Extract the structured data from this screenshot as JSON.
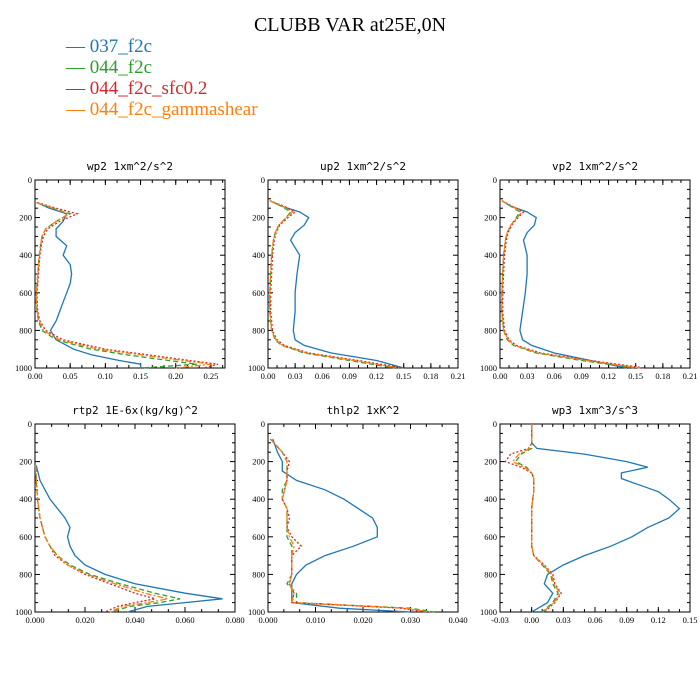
{
  "title": "CLUBB VAR at25E,0N",
  "legend": [
    {
      "label": "037_f2c",
      "color": "#1f77b4",
      "dash": "solid"
    },
    {
      "label": "044_f2c",
      "color": "#2ca02c",
      "dash": "dashed"
    },
    {
      "label": "044_f2c_sfc0.2",
      "color": "#d62728",
      "dash": "dotted"
    },
    {
      "label": "044_f2c_gammashear",
      "color": "#ff7f0e",
      "dash": "dashdot"
    }
  ],
  "chart_data": [
    {
      "type": "line",
      "title": "wp2  1xm^2/s^2",
      "xlim": [
        0,
        0.27
      ],
      "ylim": [
        1000,
        0
      ],
      "xticks": [
        "0.00",
        "0.05",
        "0.10",
        "0.15",
        "0.20",
        "0.25"
      ],
      "xtick_values": [
        0,
        0.05,
        0.1,
        0.15,
        0.2,
        0.25
      ],
      "yticks": [
        "0",
        "200",
        "400",
        "600",
        "800",
        "1000"
      ],
      "y": [
        120,
        150,
        180,
        220,
        260,
        300,
        350,
        400,
        450,
        500,
        550,
        600,
        650,
        700,
        750,
        800,
        850,
        900,
        930,
        960,
        980,
        1000
      ],
      "series": [
        {
          "name": "037_f2c",
          "x": [
            0.003,
            0.02,
            0.045,
            0.04,
            0.03,
            0.03,
            0.045,
            0.04,
            0.05,
            0.052,
            0.05,
            0.045,
            0.04,
            0.035,
            0.03,
            0.022,
            0.03,
            0.055,
            0.08,
            0.12,
            0.15,
            0.15
          ]
        },
        {
          "name": "044_f2c",
          "x": [
            0.002,
            0.025,
            0.05,
            0.03,
            0.015,
            0.01,
            0.008,
            0.006,
            0.005,
            0.004,
            0.003,
            0.002,
            0.002,
            0.003,
            0.005,
            0.01,
            0.03,
            0.08,
            0.13,
            0.19,
            0.23,
            0.15
          ]
        },
        {
          "name": "044_f2c_sfc0.2",
          "x": [
            0.003,
            0.03,
            0.06,
            0.035,
            0.018,
            0.012,
            0.009,
            0.007,
            0.006,
            0.005,
            0.004,
            0.003,
            0.003,
            0.004,
            0.007,
            0.015,
            0.04,
            0.1,
            0.16,
            0.22,
            0.26,
            0.24
          ]
        },
        {
          "name": "044_f2c_gammashear",
          "x": [
            0.002,
            0.025,
            0.048,
            0.03,
            0.015,
            0.01,
            0.008,
            0.006,
            0.005,
            0.004,
            0.003,
            0.002,
            0.002,
            0.003,
            0.006,
            0.012,
            0.035,
            0.09,
            0.15,
            0.21,
            0.25,
            0.2
          ]
        }
      ]
    },
    {
      "type": "line",
      "title": "up2  1xm^2/s^2",
      "xlim": [
        0,
        0.21
      ],
      "ylim": [
        1000,
        0
      ],
      "xticks": [
        "0.00",
        "0.03",
        "0.06",
        "0.09",
        "0.12",
        "0.15",
        "0.18",
        "0.21"
      ],
      "xtick_values": [
        0,
        0.03,
        0.06,
        0.09,
        0.12,
        0.15,
        0.18,
        0.21
      ],
      "yticks": [
        "0",
        "200",
        "400",
        "600",
        "800",
        "1000"
      ],
      "y": [
        110,
        140,
        170,
        200,
        240,
        280,
        320,
        360,
        400,
        500,
        600,
        700,
        800,
        850,
        880,
        920,
        960,
        1000
      ],
      "series": [
        {
          "name": "037_f2c",
          "x": [
            0.002,
            0.015,
            0.035,
            0.045,
            0.04,
            0.03,
            0.025,
            0.03,
            0.035,
            0.032,
            0.03,
            0.03,
            0.028,
            0.03,
            0.04,
            0.07,
            0.12,
            0.15
          ]
        },
        {
          "name": "044_f2c",
          "x": [
            0.002,
            0.015,
            0.025,
            0.02,
            0.012,
            0.008,
            0.006,
            0.005,
            0.004,
            0.003,
            0.002,
            0.002,
            0.004,
            0.008,
            0.015,
            0.04,
            0.09,
            0.14
          ]
        },
        {
          "name": "044_f2c_sfc0.2",
          "x": [
            0.002,
            0.018,
            0.03,
            0.022,
            0.013,
            0.009,
            0.007,
            0.006,
            0.005,
            0.004,
            0.003,
            0.003,
            0.005,
            0.01,
            0.018,
            0.045,
            0.1,
            0.15
          ]
        },
        {
          "name": "044_f2c_gammashear",
          "x": [
            0.002,
            0.016,
            0.027,
            0.02,
            0.012,
            0.008,
            0.006,
            0.005,
            0.004,
            0.003,
            0.002,
            0.002,
            0.004,
            0.009,
            0.016,
            0.042,
            0.095,
            0.145
          ]
        }
      ]
    },
    {
      "type": "line",
      "title": "vp2  1xm^2/s^2",
      "xlim": [
        0,
        0.21
      ],
      "ylim": [
        1000,
        0
      ],
      "xticks": [
        "0.00",
        "0.03",
        "0.06",
        "0.09",
        "0.12",
        "0.15",
        "0.18",
        "0.21"
      ],
      "xtick_values": [
        0,
        0.03,
        0.06,
        0.09,
        0.12,
        0.15,
        0.18,
        0.21
      ],
      "yticks": [
        "0",
        "200",
        "400",
        "600",
        "800",
        "1000"
      ],
      "y": [
        110,
        140,
        170,
        200,
        240,
        280,
        320,
        360,
        400,
        500,
        600,
        700,
        800,
        850,
        880,
        920,
        960,
        1000
      ],
      "series": [
        {
          "name": "037_f2c",
          "x": [
            0.002,
            0.012,
            0.03,
            0.04,
            0.038,
            0.03,
            0.026,
            0.028,
            0.03,
            0.03,
            0.028,
            0.025,
            0.022,
            0.025,
            0.035,
            0.06,
            0.1,
            0.14
          ]
        },
        {
          "name": "044_f2c",
          "x": [
            0.002,
            0.012,
            0.022,
            0.018,
            0.012,
            0.008,
            0.006,
            0.005,
            0.004,
            0.003,
            0.002,
            0.002,
            0.004,
            0.008,
            0.015,
            0.04,
            0.09,
            0.15
          ]
        },
        {
          "name": "044_f2c_sfc0.2",
          "x": [
            0.002,
            0.014,
            0.026,
            0.02,
            0.013,
            0.009,
            0.007,
            0.006,
            0.005,
            0.004,
            0.003,
            0.003,
            0.005,
            0.01,
            0.018,
            0.045,
            0.1,
            0.16
          ]
        },
        {
          "name": "044_f2c_gammashear",
          "x": [
            0.002,
            0.013,
            0.024,
            0.019,
            0.012,
            0.008,
            0.006,
            0.005,
            0.004,
            0.003,
            0.002,
            0.002,
            0.004,
            0.009,
            0.016,
            0.042,
            0.095,
            0.155
          ]
        }
      ]
    },
    {
      "type": "line",
      "title": "rtp2  1E-6x(kg/kg)^2",
      "xlim": [
        0,
        0.08
      ],
      "ylim": [
        1000,
        0
      ],
      "xticks": [
        "0.000",
        "0.020",
        "0.040",
        "0.060",
        "0.080"
      ],
      "xtick_values": [
        0,
        0.02,
        0.04,
        0.06,
        0.08
      ],
      "yticks": [
        "0",
        "200",
        "400",
        "600",
        "800",
        "1000"
      ],
      "y": [
        220,
        300,
        400,
        500,
        550,
        600,
        650,
        700,
        750,
        800,
        850,
        900,
        930,
        950,
        970,
        1000
      ],
      "series": [
        {
          "name": "037_f2c",
          "x": [
            0.0005,
            0.002,
            0.006,
            0.012,
            0.014,
            0.013,
            0.014,
            0.016,
            0.02,
            0.028,
            0.04,
            0.06,
            0.075,
            0.06,
            0.045,
            0.037
          ]
        },
        {
          "name": "044_f2c",
          "x": [
            0.0002,
            0.0005,
            0.001,
            0.002,
            0.003,
            0.004,
            0.006,
            0.009,
            0.014,
            0.022,
            0.034,
            0.048,
            0.058,
            0.05,
            0.038,
            0.03
          ]
        },
        {
          "name": "044_f2c_sfc0.2",
          "x": [
            0.0002,
            0.0005,
            0.001,
            0.002,
            0.003,
            0.004,
            0.006,
            0.008,
            0.013,
            0.02,
            0.03,
            0.04,
            0.048,
            0.04,
            0.033,
            0.028
          ]
        },
        {
          "name": "044_f2c_gammashear",
          "x": [
            0.0002,
            0.0005,
            0.001,
            0.002,
            0.003,
            0.004,
            0.006,
            0.009,
            0.013,
            0.021,
            0.032,
            0.044,
            0.053,
            0.045,
            0.035,
            0.03
          ]
        }
      ]
    },
    {
      "type": "line",
      "title": "thlp2  1xK^2",
      "xlim": [
        0,
        0.04
      ],
      "ylim": [
        1000,
        0
      ],
      "xticks": [
        "0.000",
        "0.010",
        "0.020",
        "0.030",
        "0.040"
      ],
      "xtick_values": [
        0,
        0.01,
        0.02,
        0.03,
        0.04
      ],
      "yticks": [
        "0",
        "200",
        "400",
        "600",
        "800",
        "1000"
      ],
      "y": [
        80,
        150,
        200,
        250,
        300,
        350,
        400,
        450,
        500,
        550,
        600,
        650,
        700,
        750,
        800,
        850,
        900,
        950,
        980,
        1000
      ],
      "series": [
        {
          "name": "037_f2c",
          "x": [
            0.001,
            0.002,
            0.003,
            0.003,
            0.006,
            0.012,
            0.016,
            0.019,
            0.022,
            0.023,
            0.023,
            0.018,
            0.012,
            0.008,
            0.006,
            0.005,
            0.005,
            0.005,
            0.015,
            0.03
          ]
        },
        {
          "name": "044_f2c",
          "x": [
            0.0005,
            0.003,
            0.004,
            0.004,
            0.004,
            0.003,
            0.003,
            0.004,
            0.004,
            0.004,
            0.004,
            0.005,
            0.005,
            0.005,
            0.005,
            0.004,
            0.006,
            0.006,
            0.03,
            0.035
          ]
        },
        {
          "name": "044_f2c_sfc0.2",
          "x": [
            0.0005,
            0.003,
            0.0045,
            0.004,
            0.004,
            0.0035,
            0.003,
            0.004,
            0.0045,
            0.004,
            0.005,
            0.007,
            0.005,
            0.005,
            0.005,
            0.0045,
            0.0055,
            0.005,
            0.028,
            0.033
          ]
        },
        {
          "name": "044_f2c_gammashear",
          "x": [
            0.0005,
            0.003,
            0.004,
            0.004,
            0.004,
            0.0035,
            0.003,
            0.004,
            0.004,
            0.004,
            0.0045,
            0.0055,
            0.005,
            0.005,
            0.005,
            0.0045,
            0.0055,
            0.005,
            0.029,
            0.034
          ]
        }
      ]
    },
    {
      "type": "line",
      "title": "wp3  1xm^3/s^3",
      "xlim": [
        -0.03,
        0.15
      ],
      "ylim": [
        1000,
        0
      ],
      "xticks": [
        "-0.03",
        "0.00",
        "0.03",
        "0.06",
        "0.09",
        "0.12",
        "0.15"
      ],
      "xtick_values": [
        -0.03,
        0,
        0.03,
        0.06,
        0.09,
        0.12,
        0.15
      ],
      "yticks": [
        "0",
        "200",
        "400",
        "600",
        "800",
        "1000"
      ],
      "y": [
        0,
        100,
        130,
        160,
        200,
        230,
        260,
        290,
        320,
        360,
        400,
        450,
        500,
        550,
        600,
        650,
        700,
        750,
        800,
        850,
        900,
        950,
        1000
      ],
      "series": [
        {
          "name": "037_f2c",
          "x": [
            0,
            0,
            0.005,
            0.05,
            0.09,
            0.11,
            0.085,
            0.085,
            0.1,
            0.12,
            0.13,
            0.14,
            0.13,
            0.11,
            0.095,
            0.075,
            0.05,
            0.03,
            0.015,
            0.012,
            0.02,
            0.015,
            0
          ]
        },
        {
          "name": "044_f2c",
          "x": [
            0,
            0,
            0,
            -0.01,
            -0.015,
            -0.005,
            0,
            0.002,
            0.002,
            0.002,
            0.001,
            0,
            0,
            0,
            0,
            0,
            0.002,
            0.01,
            0.018,
            0.02,
            0.025,
            0.02,
            0.01
          ]
        },
        {
          "name": "044_f2c_sfc0.2",
          "x": [
            0,
            0,
            -0.003,
            -0.02,
            -0.025,
            -0.01,
            0,
            0.002,
            0.002,
            0.002,
            0.001,
            0,
            0,
            0,
            0,
            0,
            0.002,
            0.012,
            0.02,
            0.022,
            0.028,
            0.022,
            0.012
          ]
        },
        {
          "name": "044_f2c_gammashear",
          "x": [
            0,
            0,
            -0.002,
            -0.012,
            -0.018,
            -0.007,
            0,
            0.002,
            0.002,
            0.002,
            0.001,
            0,
            0,
            0,
            0,
            0,
            0.002,
            0.011,
            0.019,
            0.021,
            0.027,
            0.021,
            0.011
          ]
        }
      ]
    }
  ]
}
